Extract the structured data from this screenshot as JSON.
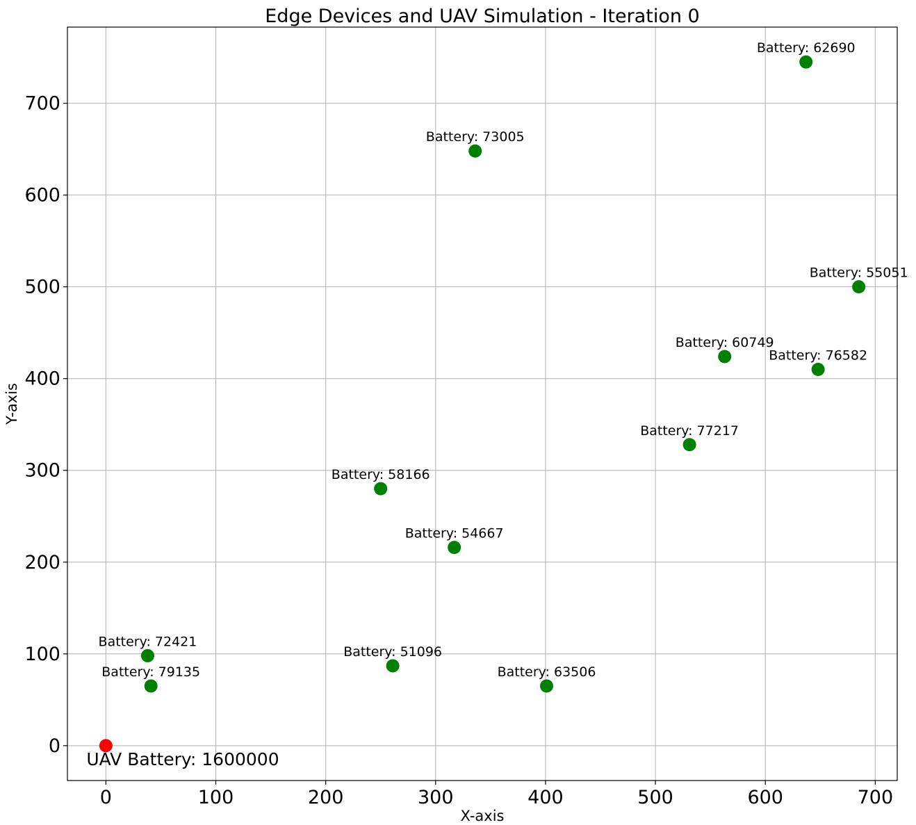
{
  "chart_data": {
    "type": "scatter",
    "title": "Edge Devices and UAV Simulation - Iteration 0",
    "xlabel": "X-axis",
    "ylabel": "Y-axis",
    "xlim": [
      -35,
      720
    ],
    "ylim": [
      -38,
      783
    ],
    "xticks": [
      0,
      100,
      200,
      300,
      400,
      500,
      600,
      700
    ],
    "yticks": [
      0,
      100,
      200,
      300,
      400,
      500,
      600,
      700
    ],
    "grid": true,
    "series": [
      {
        "name": "Edge Devices",
        "color": "#008000",
        "points": [
          {
            "x": 637,
            "y": 745,
            "label": "Battery: 62690"
          },
          {
            "x": 336,
            "y": 648,
            "label": "Battery: 73005"
          },
          {
            "x": 685,
            "y": 500,
            "label": "Battery: 55051"
          },
          {
            "x": 563,
            "y": 424,
            "label": "Battery: 60749"
          },
          {
            "x": 648,
            "y": 410,
            "label": "Battery: 76582"
          },
          {
            "x": 531,
            "y": 328,
            "label": "Battery: 77217"
          },
          {
            "x": 250,
            "y": 280,
            "label": "Battery: 58166"
          },
          {
            "x": 317,
            "y": 216,
            "label": "Battery: 54667"
          },
          {
            "x": 38,
            "y": 98,
            "label": "Battery: 72421"
          },
          {
            "x": 41,
            "y": 65,
            "label": "Battery: 79135"
          },
          {
            "x": 261,
            "y": 87,
            "label": "Battery: 51096"
          },
          {
            "x": 401,
            "y": 65,
            "label": "Battery: 63506"
          }
        ]
      },
      {
        "name": "UAV",
        "color": "#ff0000",
        "points": [
          {
            "x": 0,
            "y": 0,
            "label": "UAV Battery: 1600000"
          }
        ]
      }
    ]
  }
}
